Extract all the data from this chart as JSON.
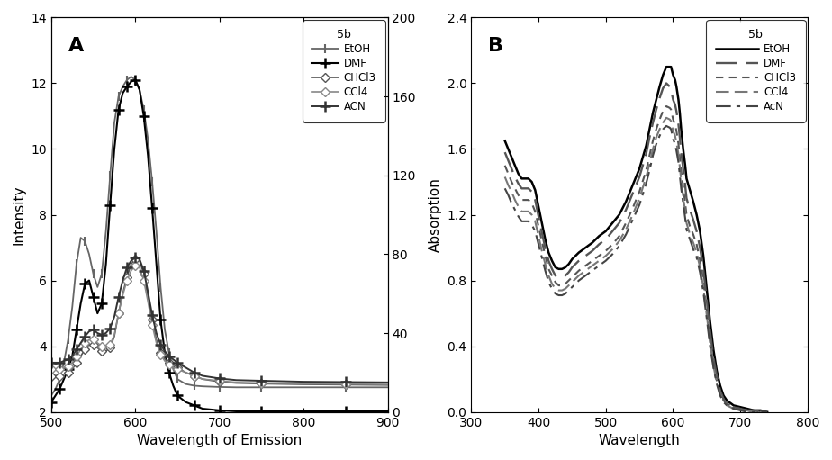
{
  "panel_A": {
    "title": "A",
    "xlabel": "Wavelength of Emission",
    "ylabel": "Intensity",
    "xlim": [
      500,
      900
    ],
    "ylim": [
      2,
      14
    ],
    "ylim2": [
      0,
      200
    ],
    "yticks": [
      2,
      4,
      6,
      8,
      10,
      12,
      14
    ],
    "yticks2": [
      0,
      40,
      80,
      120,
      160,
      200
    ],
    "xticks": [
      500,
      600,
      700,
      800,
      900
    ],
    "legend_title": "5b",
    "series": [
      {
        "label": "EtOH",
        "color": "#666666",
        "linewidth": 1.3,
        "marker": "|",
        "markersize": 7,
        "markevery": 2,
        "markeredgewidth": 1.5,
        "x": [
          500,
          505,
          510,
          515,
          520,
          525,
          530,
          535,
          540,
          545,
          550,
          555,
          560,
          565,
          570,
          575,
          580,
          585,
          590,
          595,
          600,
          605,
          610,
          615,
          620,
          625,
          630,
          635,
          640,
          645,
          650,
          660,
          670,
          680,
          700,
          720,
          750,
          800,
          850,
          900
        ],
        "y": [
          2.5,
          2.7,
          3.0,
          3.5,
          4.2,
          5.2,
          6.5,
          7.3,
          7.2,
          6.8,
          6.2,
          5.8,
          6.2,
          7.5,
          9.2,
          10.8,
          11.6,
          11.9,
          12.1,
          12.2,
          12.1,
          11.8,
          11.2,
          10.3,
          9.0,
          7.5,
          5.8,
          4.5,
          3.8,
          3.3,
          3.0,
          2.85,
          2.8,
          2.78,
          2.76,
          2.75,
          2.75,
          2.75,
          2.75,
          2.75
        ]
      },
      {
        "label": "DMF",
        "color": "#000000",
        "linewidth": 1.5,
        "marker": "+",
        "markersize": 8,
        "markevery": 2,
        "markeredgewidth": 1.8,
        "x": [
          500,
          505,
          510,
          515,
          520,
          525,
          530,
          535,
          540,
          545,
          550,
          555,
          560,
          565,
          570,
          575,
          580,
          585,
          590,
          595,
          600,
          605,
          610,
          615,
          620,
          625,
          630,
          635,
          640,
          645,
          650,
          660,
          670,
          680,
          700,
          720,
          750,
          800,
          850,
          900
        ],
        "y": [
          2.3,
          2.5,
          2.7,
          3.0,
          3.3,
          3.7,
          4.5,
          5.3,
          5.9,
          6.0,
          5.5,
          5.0,
          5.3,
          6.5,
          8.3,
          10.0,
          11.2,
          11.7,
          11.9,
          12.05,
          12.1,
          11.8,
          11.0,
          9.8,
          8.2,
          6.5,
          4.8,
          3.8,
          3.2,
          2.8,
          2.5,
          2.3,
          2.2,
          2.1,
          2.05,
          2.02,
          2.02,
          2.02,
          2.02,
          2.02
        ]
      },
      {
        "label": "CHCl3",
        "color": "#555555",
        "linewidth": 1.2,
        "marker": "D",
        "markersize": 5,
        "markevery": 2,
        "markeredgewidth": 1.0,
        "markerfacecolor": "white",
        "x": [
          500,
          505,
          510,
          515,
          520,
          525,
          530,
          535,
          540,
          545,
          550,
          555,
          560,
          565,
          570,
          575,
          580,
          585,
          590,
          595,
          600,
          605,
          610,
          615,
          620,
          625,
          630,
          635,
          640,
          645,
          650,
          660,
          670,
          680,
          700,
          720,
          750,
          800,
          850,
          900
        ],
        "y": [
          3.1,
          3.1,
          3.1,
          3.15,
          3.2,
          3.3,
          3.5,
          3.7,
          3.9,
          4.05,
          4.05,
          3.95,
          3.85,
          3.85,
          3.95,
          4.3,
          5.0,
          5.6,
          6.1,
          6.5,
          6.65,
          6.6,
          6.2,
          5.5,
          4.8,
          4.2,
          3.8,
          3.6,
          3.5,
          3.4,
          3.35,
          3.2,
          3.1,
          3.0,
          2.92,
          2.88,
          2.86,
          2.84,
          2.83,
          2.82
        ]
      },
      {
        "label": "CCl4",
        "color": "#888888",
        "linewidth": 1.2,
        "marker": "D",
        "markersize": 5,
        "markevery": 2,
        "markeredgewidth": 1.0,
        "markerfacecolor": "white",
        "x": [
          500,
          505,
          510,
          515,
          520,
          525,
          530,
          535,
          540,
          545,
          550,
          555,
          560,
          565,
          570,
          575,
          580,
          585,
          590,
          595,
          600,
          605,
          610,
          615,
          620,
          625,
          630,
          635,
          640,
          645,
          650,
          660,
          670,
          680,
          700,
          720,
          750,
          800,
          850,
          900
        ],
        "y": [
          3.3,
          3.3,
          3.3,
          3.35,
          3.4,
          3.5,
          3.7,
          3.9,
          4.1,
          4.2,
          4.2,
          4.1,
          4.0,
          4.0,
          4.05,
          4.35,
          5.0,
          5.55,
          6.0,
          6.3,
          6.45,
          6.4,
          6.0,
          5.35,
          4.65,
          4.1,
          3.75,
          3.55,
          3.45,
          3.35,
          3.3,
          3.2,
          3.1,
          3.0,
          2.95,
          2.9,
          2.88,
          2.86,
          2.85,
          2.84
        ]
      },
      {
        "label": "ACN",
        "color": "#333333",
        "linewidth": 1.4,
        "marker": "+",
        "markersize": 8,
        "markevery": 2,
        "markeredgewidth": 1.8,
        "x": [
          500,
          505,
          510,
          515,
          520,
          525,
          530,
          535,
          540,
          545,
          550,
          555,
          560,
          565,
          570,
          575,
          580,
          585,
          590,
          595,
          600,
          605,
          610,
          615,
          620,
          625,
          630,
          635,
          640,
          645,
          650,
          660,
          670,
          680,
          700,
          720,
          750,
          800,
          850,
          900
        ],
        "y": [
          3.5,
          3.5,
          3.5,
          3.55,
          3.6,
          3.7,
          3.9,
          4.1,
          4.3,
          4.45,
          4.5,
          4.4,
          4.35,
          4.4,
          4.55,
          4.9,
          5.5,
          6.0,
          6.4,
          6.6,
          6.7,
          6.65,
          6.3,
          5.65,
          4.95,
          4.4,
          4.05,
          3.85,
          3.7,
          3.6,
          3.5,
          3.35,
          3.2,
          3.1,
          3.02,
          2.97,
          2.95,
          2.92,
          2.91,
          2.9
        ]
      }
    ]
  },
  "panel_B": {
    "title": "B",
    "xlabel": "Wavelength",
    "ylabel": "Absorption",
    "xlim": [
      300,
      800
    ],
    "ylim": [
      0,
      2.4
    ],
    "yticks": [
      0,
      0.4,
      0.8,
      1.2,
      1.6,
      2.0,
      2.4
    ],
    "xticks": [
      300,
      400,
      500,
      600,
      700,
      800
    ],
    "legend_title": "5b",
    "series": [
      {
        "label": "EtOH",
        "color": "#000000",
        "linewidth": 1.8,
        "linestyle_key": "solid",
        "x": [
          350,
          355,
          360,
          365,
          370,
          375,
          380,
          385,
          390,
          395,
          400,
          405,
          410,
          415,
          420,
          425,
          430,
          435,
          440,
          445,
          450,
          460,
          470,
          480,
          490,
          500,
          510,
          520,
          530,
          540,
          550,
          560,
          565,
          570,
          575,
          580,
          585,
          590,
          595,
          597,
          600,
          603,
          605,
          608,
          610,
          612,
          615,
          618,
          620,
          625,
          630,
          635,
          640,
          645,
          650,
          655,
          660,
          665,
          670,
          675,
          680,
          690,
          700,
          710,
          720,
          730,
          740
        ],
        "y": [
          1.65,
          1.6,
          1.55,
          1.5,
          1.45,
          1.42,
          1.42,
          1.42,
          1.4,
          1.35,
          1.25,
          1.15,
          1.05,
          0.97,
          0.92,
          0.88,
          0.87,
          0.87,
          0.88,
          0.9,
          0.93,
          0.97,
          1.0,
          1.03,
          1.07,
          1.1,
          1.15,
          1.2,
          1.28,
          1.38,
          1.48,
          1.62,
          1.72,
          1.82,
          1.9,
          1.98,
          2.05,
          2.1,
          2.1,
          2.1,
          2.05,
          2.02,
          1.98,
          1.9,
          1.82,
          1.72,
          1.6,
          1.5,
          1.42,
          1.35,
          1.28,
          1.2,
          1.1,
          0.95,
          0.75,
          0.55,
          0.38,
          0.25,
          0.16,
          0.1,
          0.07,
          0.04,
          0.03,
          0.02,
          0.01,
          0.01,
          0.0
        ]
      },
      {
        "label": "DMF",
        "color": "#555555",
        "linewidth": 1.7,
        "linestyle_key": "long_dash",
        "x": [
          350,
          355,
          360,
          365,
          370,
          375,
          380,
          385,
          390,
          395,
          400,
          405,
          410,
          415,
          420,
          425,
          430,
          435,
          440,
          445,
          450,
          460,
          470,
          480,
          490,
          500,
          510,
          520,
          530,
          540,
          550,
          560,
          565,
          570,
          575,
          580,
          585,
          590,
          595,
          597,
          600,
          603,
          605,
          608,
          610,
          612,
          615,
          618,
          620,
          625,
          630,
          635,
          640,
          645,
          650,
          655,
          660,
          665,
          670,
          675,
          680,
          690,
          700,
          710,
          720,
          730,
          740
        ],
        "y": [
          1.58,
          1.53,
          1.48,
          1.43,
          1.39,
          1.36,
          1.36,
          1.36,
          1.34,
          1.29,
          1.19,
          1.09,
          1.0,
          0.92,
          0.87,
          0.83,
          0.82,
          0.82,
          0.83,
          0.85,
          0.88,
          0.92,
          0.95,
          0.98,
          1.02,
          1.05,
          1.1,
          1.15,
          1.23,
          1.33,
          1.43,
          1.57,
          1.67,
          1.76,
          1.84,
          1.91,
          1.97,
          2.0,
          1.98,
          1.96,
          1.9,
          1.87,
          1.83,
          1.75,
          1.67,
          1.58,
          1.48,
          1.38,
          1.3,
          1.23,
          1.17,
          1.1,
          1.0,
          0.87,
          0.68,
          0.49,
          0.33,
          0.22,
          0.13,
          0.08,
          0.05,
          0.03,
          0.02,
          0.01,
          0.01,
          0.0,
          0.0
        ]
      },
      {
        "label": "CHCl3",
        "color": "#555555",
        "linewidth": 1.5,
        "linestyle_key": "short_dash",
        "x": [
          350,
          355,
          360,
          365,
          370,
          375,
          380,
          385,
          390,
          395,
          400,
          405,
          410,
          415,
          420,
          425,
          430,
          435,
          440,
          445,
          450,
          460,
          470,
          480,
          490,
          500,
          510,
          520,
          530,
          540,
          550,
          560,
          565,
          570,
          575,
          580,
          585,
          590,
          595,
          597,
          600,
          603,
          605,
          608,
          610,
          612,
          615,
          618,
          620,
          625,
          630,
          635,
          640,
          645,
          650,
          655,
          660,
          665,
          670,
          675,
          680,
          690,
          700,
          710,
          720,
          730,
          740
        ],
        "y": [
          1.5,
          1.45,
          1.4,
          1.36,
          1.32,
          1.29,
          1.29,
          1.29,
          1.27,
          1.22,
          1.13,
          1.04,
          0.95,
          0.87,
          0.83,
          0.79,
          0.77,
          0.77,
          0.78,
          0.8,
          0.82,
          0.86,
          0.89,
          0.92,
          0.95,
          0.98,
          1.02,
          1.07,
          1.15,
          1.24,
          1.34,
          1.47,
          1.56,
          1.65,
          1.72,
          1.78,
          1.83,
          1.86,
          1.85,
          1.84,
          1.78,
          1.75,
          1.71,
          1.63,
          1.55,
          1.47,
          1.37,
          1.27,
          1.2,
          1.13,
          1.08,
          1.02,
          0.92,
          0.8,
          0.62,
          0.44,
          0.29,
          0.19,
          0.12,
          0.07,
          0.05,
          0.03,
          0.02,
          0.01,
          0.0,
          0.0,
          0.0
        ]
      },
      {
        "label": "CCl4",
        "color": "#777777",
        "linewidth": 1.5,
        "linestyle_key": "medium_dash",
        "x": [
          350,
          355,
          360,
          365,
          370,
          375,
          380,
          385,
          390,
          395,
          400,
          405,
          410,
          415,
          420,
          425,
          430,
          435,
          440,
          445,
          450,
          460,
          470,
          480,
          490,
          500,
          510,
          520,
          530,
          540,
          550,
          560,
          565,
          570,
          575,
          580,
          585,
          590,
          595,
          597,
          600,
          603,
          605,
          608,
          610,
          612,
          615,
          618,
          620,
          625,
          630,
          635,
          640,
          645,
          650,
          655,
          660,
          665,
          670,
          675,
          680,
          690,
          700,
          710,
          720,
          730,
          740
        ],
        "y": [
          1.43,
          1.38,
          1.34,
          1.29,
          1.25,
          1.22,
          1.22,
          1.22,
          1.2,
          1.16,
          1.07,
          0.98,
          0.9,
          0.83,
          0.78,
          0.75,
          0.74,
          0.74,
          0.75,
          0.77,
          0.79,
          0.83,
          0.86,
          0.89,
          0.92,
          0.95,
          0.99,
          1.04,
          1.11,
          1.2,
          1.3,
          1.43,
          1.51,
          1.6,
          1.67,
          1.72,
          1.76,
          1.79,
          1.78,
          1.77,
          1.71,
          1.68,
          1.64,
          1.57,
          1.49,
          1.41,
          1.31,
          1.22,
          1.15,
          1.08,
          1.03,
          0.97,
          0.88,
          0.76,
          0.59,
          0.42,
          0.28,
          0.18,
          0.11,
          0.07,
          0.04,
          0.02,
          0.01,
          0.01,
          0.0,
          0.0,
          0.0
        ]
      },
      {
        "label": "AcN",
        "color": "#444444",
        "linewidth": 1.5,
        "linestyle_key": "dash_dot",
        "x": [
          350,
          355,
          360,
          365,
          370,
          375,
          380,
          385,
          390,
          395,
          400,
          405,
          410,
          415,
          420,
          425,
          430,
          435,
          440,
          445,
          450,
          460,
          470,
          480,
          490,
          500,
          510,
          520,
          530,
          540,
          550,
          560,
          565,
          570,
          575,
          580,
          585,
          590,
          595,
          597,
          600,
          603,
          605,
          608,
          610,
          612,
          615,
          618,
          620,
          625,
          630,
          635,
          640,
          645,
          650,
          655,
          660,
          665,
          670,
          675,
          680,
          690,
          700,
          710,
          720,
          730,
          740
        ],
        "y": [
          1.36,
          1.32,
          1.27,
          1.23,
          1.19,
          1.16,
          1.16,
          1.16,
          1.14,
          1.1,
          1.02,
          0.94,
          0.86,
          0.79,
          0.75,
          0.72,
          0.71,
          0.71,
          0.72,
          0.74,
          0.76,
          0.8,
          0.83,
          0.86,
          0.89,
          0.92,
          0.96,
          1.01,
          1.08,
          1.17,
          1.26,
          1.39,
          1.47,
          1.56,
          1.63,
          1.68,
          1.72,
          1.74,
          1.73,
          1.72,
          1.66,
          1.63,
          1.59,
          1.52,
          1.44,
          1.36,
          1.27,
          1.18,
          1.11,
          1.05,
          0.99,
          0.94,
          0.85,
          0.73,
          0.57,
          0.4,
          0.27,
          0.17,
          0.1,
          0.06,
          0.04,
          0.02,
          0.01,
          0.0,
          0.0,
          0.0,
          0.0
        ]
      }
    ]
  }
}
